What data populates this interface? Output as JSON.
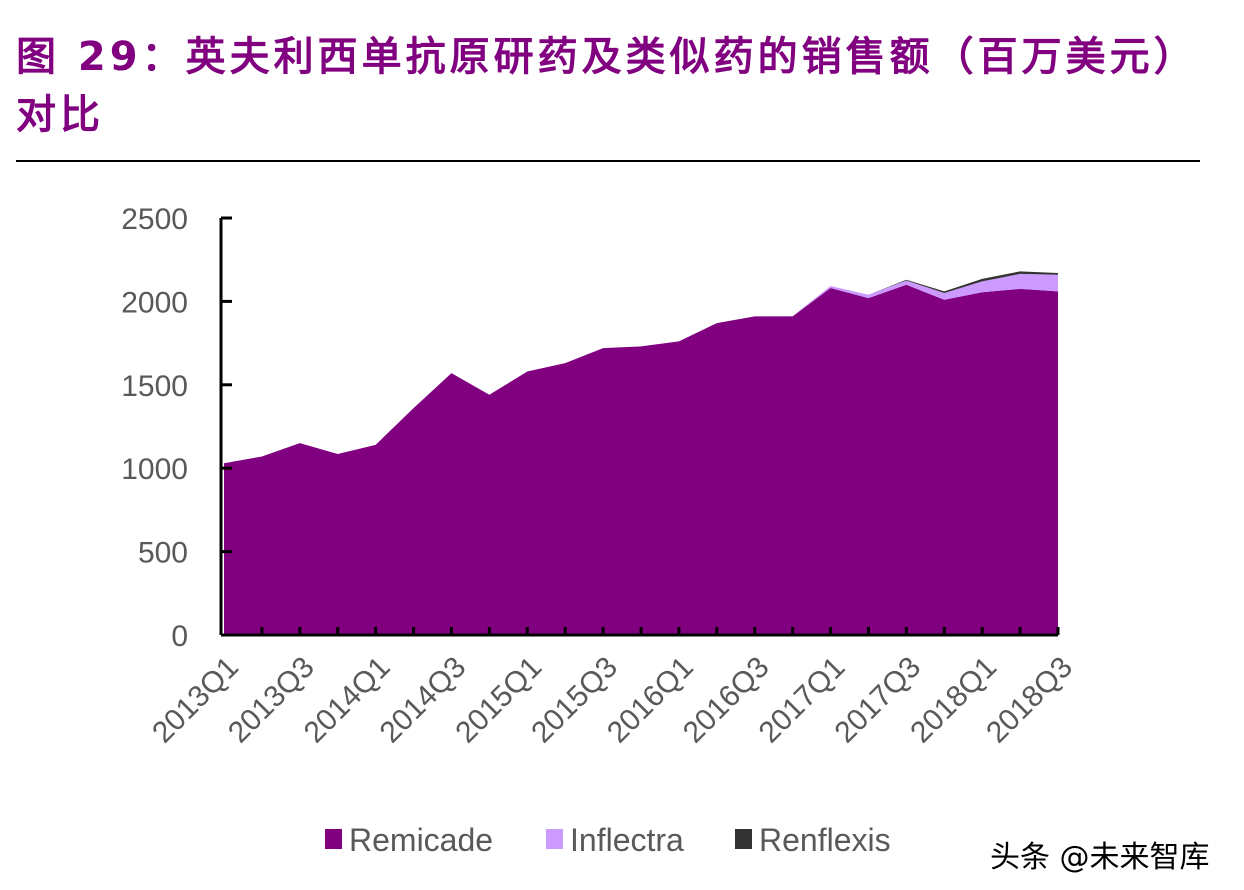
{
  "title": "图 29：英夫利西单抗原研药及类似药的销售额（百万美元）对比",
  "watermark": "头条 @未来智库",
  "chart_data": {
    "type": "area",
    "stacked": true,
    "title": "图 29：英夫利西单抗原研药及类似药的销售额（百万美元）对比",
    "xlabel": "",
    "ylabel": "",
    "ylim": [
      0,
      2500
    ],
    "yticks": [
      "0",
      "500",
      "1000",
      "1500",
      "2000",
      "2500"
    ],
    "x": [
      "2013Q1",
      "2013Q2",
      "2013Q3",
      "2013Q4",
      "2014Q1",
      "2014Q2",
      "2014Q3",
      "2014Q4",
      "2015Q1",
      "2015Q2",
      "2015Q3",
      "2015Q4",
      "2016Q1",
      "2016Q2",
      "2016Q3",
      "2016Q4",
      "2017Q1",
      "2017Q2",
      "2017Q3",
      "2017Q4",
      "2018Q1",
      "2018Q2",
      "2018Q3"
    ],
    "xtick_labels": [
      "2013Q1",
      "2013Q3",
      "2014Q1",
      "2014Q3",
      "2015Q1",
      "2015Q3",
      "2016Q1",
      "2016Q3",
      "2017Q1",
      "2017Q3",
      "2018Q1",
      "2018Q3"
    ],
    "grid": false,
    "legend_position": "bottom",
    "series": [
      {
        "name": "Remicade",
        "color": "#800080",
        "values": [
          1030,
          1070,
          1150,
          1085,
          1140,
          1360,
          1570,
          1440,
          1580,
          1630,
          1720,
          1730,
          1760,
          1870,
          1910,
          1910,
          2080,
          2020,
          2100,
          2010,
          2055,
          2075,
          2060
        ]
      },
      {
        "name": "Inflectra",
        "color": "#CC99FF",
        "values": [
          0,
          0,
          0,
          0,
          0,
          0,
          0,
          0,
          0,
          0,
          0,
          0,
          0,
          0,
          0,
          2,
          12,
          20,
          25,
          40,
          65,
          90,
          100
        ]
      },
      {
        "name": "Renflexis",
        "color": "#333333",
        "values": [
          0,
          0,
          0,
          0,
          0,
          0,
          0,
          0,
          0,
          0,
          0,
          0,
          0,
          0,
          0,
          0,
          0,
          0,
          5,
          10,
          15,
          15,
          10
        ]
      }
    ]
  }
}
